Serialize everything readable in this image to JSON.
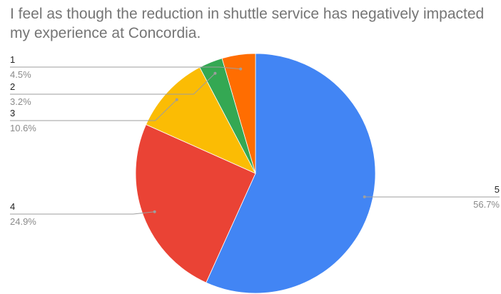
{
  "chart_data": {
    "type": "pie",
    "title": "I feel as though the reduction in shuttle service has negatively impacted my experience at Concordia.",
    "slices": [
      {
        "label": "5",
        "value": 56.7,
        "value_label": "56.7%",
        "color": "#4285f4"
      },
      {
        "label": "4",
        "value": 24.9,
        "value_label": "24.9%",
        "color": "#ea4335"
      },
      {
        "label": "3",
        "value": 10.6,
        "value_label": "10.6%",
        "color": "#fbbc04"
      },
      {
        "label": "2",
        "value": 3.2,
        "value_label": "3.2%",
        "color": "#34a853"
      },
      {
        "label": "1",
        "value": 4.5,
        "value_label": "4.5%",
        "color": "#ff6d01"
      }
    ],
    "legend": "none",
    "direction": "clockwise from top"
  }
}
